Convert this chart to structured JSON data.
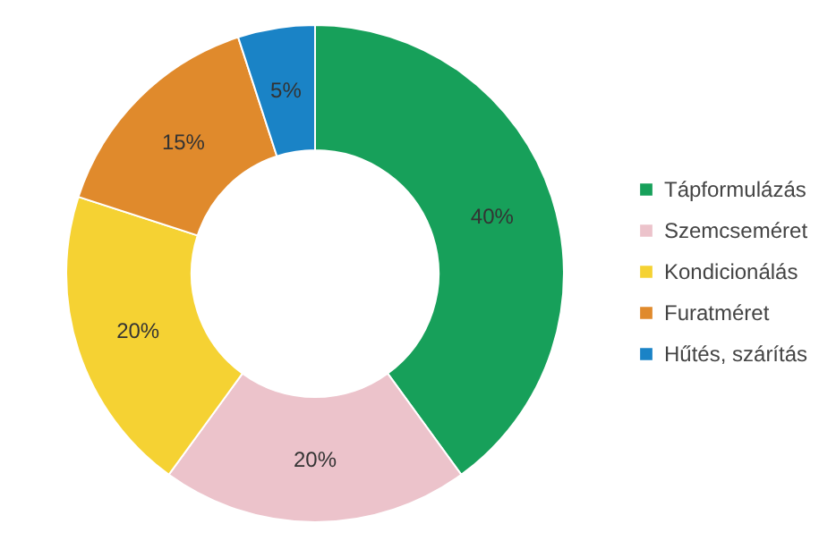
{
  "chart_data": {
    "type": "donut",
    "categories": [
      "Tápformulázás",
      "Szemcseméret",
      "Kondicionálás",
      "Furatméret",
      "Hűtés, szárítás"
    ],
    "values": [
      40,
      20,
      20,
      15,
      5
    ],
    "colors": [
      "#17a05a",
      "#ecc3cb",
      "#f5d233",
      "#e08a2c",
      "#1a83c6"
    ],
    "value_labels": [
      "40%",
      "20%",
      "20%",
      "15%",
      "5%"
    ],
    "legend": "right"
  }
}
